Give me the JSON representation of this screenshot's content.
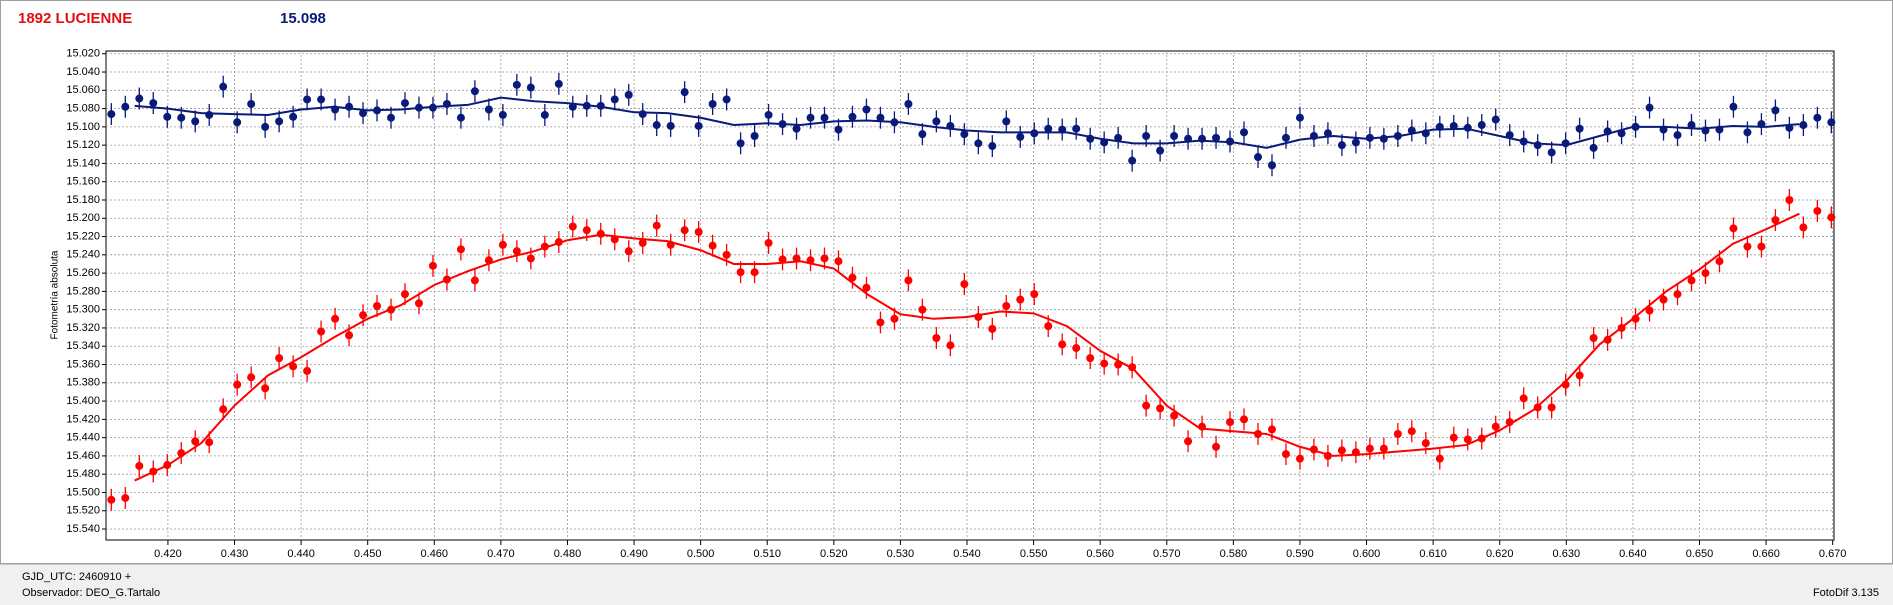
{
  "chart_data": {
    "type": "errorbar_scatter",
    "title": "1892 LUCIENNE",
    "subtitle": "15.098",
    "ylabel": "Fotometría absoluta",
    "y_inverted": true,
    "grid": true,
    "xlim": [
      0.4107,
      0.6702
    ],
    "ylim": [
      15.017,
      15.552
    ],
    "xticks": [
      {
        "value": 0.42,
        "label": "0.420"
      },
      {
        "value": 0.43,
        "label": "0.430"
      },
      {
        "value": 0.44,
        "label": "0.440"
      },
      {
        "value": 0.45,
        "label": "0.450"
      },
      {
        "value": 0.46,
        "label": "0.460"
      },
      {
        "value": 0.47,
        "label": "0.470"
      },
      {
        "value": 0.48,
        "label": "0.480"
      },
      {
        "value": 0.49,
        "label": "0.490"
      },
      {
        "value": 0.5,
        "label": "0.500"
      },
      {
        "value": 0.51,
        "label": "0.510"
      },
      {
        "value": 0.52,
        "label": "0.520"
      },
      {
        "value": 0.53,
        "label": "0.530"
      },
      {
        "value": 0.54,
        "label": "0.540"
      },
      {
        "value": 0.55,
        "label": "0.550"
      },
      {
        "value": 0.56,
        "label": "0.560"
      },
      {
        "value": 0.57,
        "label": "0.570"
      },
      {
        "value": 0.58,
        "label": "0.580"
      },
      {
        "value": 0.59,
        "label": "0.590"
      },
      {
        "value": 0.6,
        "label": "0.600"
      },
      {
        "value": 0.61,
        "label": "0.610"
      },
      {
        "value": 0.62,
        "label": "0.620"
      },
      {
        "value": 0.63,
        "label": "0.630"
      },
      {
        "value": 0.64,
        "label": "0.640"
      },
      {
        "value": 0.65,
        "label": "0.650"
      },
      {
        "value": 0.66,
        "label": "0.660"
      },
      {
        "value": 0.67,
        "label": "0.670"
      }
    ],
    "yticks": [
      {
        "value": 15.02,
        "label": "15.020"
      },
      {
        "value": 15.04,
        "label": "15.040"
      },
      {
        "value": 15.06,
        "label": "15.060"
      },
      {
        "value": 15.08,
        "label": "15.080"
      },
      {
        "value": 15.1,
        "label": "15.100"
      },
      {
        "value": 15.12,
        "label": "15.120"
      },
      {
        "value": 15.14,
        "label": "15.140"
      },
      {
        "value": 15.16,
        "label": "15.160"
      },
      {
        "value": 15.18,
        "label": "15.180"
      },
      {
        "value": 15.2,
        "label": "15.200"
      },
      {
        "value": 15.22,
        "label": "15.220"
      },
      {
        "value": 15.24,
        "label": "15.240"
      },
      {
        "value": 15.26,
        "label": "15.260"
      },
      {
        "value": 15.28,
        "label": "15.280"
      },
      {
        "value": 15.3,
        "label": "15.300"
      },
      {
        "value": 15.32,
        "label": "15.320"
      },
      {
        "value": 15.34,
        "label": "15.340"
      },
      {
        "value": 15.36,
        "label": "15.360"
      },
      {
        "value": 15.38,
        "label": "15.380"
      },
      {
        "value": 15.4,
        "label": "15.400"
      },
      {
        "value": 15.42,
        "label": "15.420"
      },
      {
        "value": 15.44,
        "label": "15.440"
      },
      {
        "value": 15.46,
        "label": "15.460"
      },
      {
        "value": 15.48,
        "label": "15.480"
      },
      {
        "value": 15.5,
        "label": "15.500"
      },
      {
        "value": 15.52,
        "label": "15.520"
      },
      {
        "value": 15.54,
        "label": "15.540"
      }
    ],
    "x": [
      0.4115,
      0.4136,
      0.4157,
      0.4178,
      0.4199,
      0.422,
      0.4241,
      0.4262,
      0.4283,
      0.4304,
      0.4325,
      0.4346,
      0.4367,
      0.4388,
      0.4409,
      0.443,
      0.4451,
      0.4472,
      0.4493,
      0.4514,
      0.4535,
      0.4556,
      0.4577,
      0.4598,
      0.4619,
      0.464,
      0.4661,
      0.4682,
      0.4703,
      0.4724,
      0.4745,
      0.4766,
      0.4787,
      0.4808,
      0.4829,
      0.485,
      0.4871,
      0.4892,
      0.4913,
      0.4934,
      0.4955,
      0.4976,
      0.4997,
      0.5018,
      0.5039,
      0.506,
      0.5081,
      0.5102,
      0.5123,
      0.5144,
      0.5165,
      0.5186,
      0.5207,
      0.5228,
      0.5249,
      0.527,
      0.5291,
      0.5312,
      0.5333,
      0.5354,
      0.5375,
      0.5396,
      0.5417,
      0.5438,
      0.5459,
      0.548,
      0.5501,
      0.5522,
      0.5543,
      0.5564,
      0.5585,
      0.5606,
      0.5627,
      0.5648,
      0.5669,
      0.569,
      0.5711,
      0.5732,
      0.5753,
      0.5774,
      0.5795,
      0.5816,
      0.5837,
      0.5858,
      0.5879,
      0.59,
      0.5921,
      0.5942,
      0.5963,
      0.5984,
      0.6005,
      0.6026,
      0.6047,
      0.6068,
      0.6089,
      0.611,
      0.6131,
      0.6152,
      0.6173,
      0.6194,
      0.6215,
      0.6236,
      0.6257,
      0.6278,
      0.6299,
      0.632,
      0.6341,
      0.6362,
      0.6383,
      0.6404,
      0.6425,
      0.6446,
      0.6467,
      0.6488,
      0.6509,
      0.653,
      0.6551,
      0.6572,
      0.6593,
      0.6614,
      0.6635,
      0.6656,
      0.6677,
      0.6698
    ],
    "series": [
      {
        "color": "#ff0000",
        "yerr": 0.012,
        "values": [
          15.508,
          15.506,
          15.471,
          15.477,
          15.47,
          15.457,
          15.444,
          15.445,
          15.409,
          15.382,
          15.374,
          15.386,
          15.353,
          15.362,
          15.367,
          15.324,
          15.31,
          15.328,
          15.306,
          15.296,
          15.3,
          15.283,
          15.293,
          15.252,
          15.267,
          15.234,
          15.268,
          15.246,
          15.229,
          15.236,
          15.244,
          15.231,
          15.226,
          15.209,
          15.213,
          15.217,
          15.223,
          15.236,
          15.227,
          15.208,
          15.229,
          15.213,
          15.215,
          15.23,
          15.24,
          15.259,
          15.259,
          15.227,
          15.245,
          15.244,
          15.246,
          15.244,
          15.247,
          15.265,
          15.276,
          15.314,
          15.31,
          15.268,
          15.3,
          15.331,
          15.339,
          15.272,
          15.308,
          15.321,
          15.296,
          15.289,
          15.283,
          15.318,
          15.338,
          15.342,
          15.353,
          15.359,
          15.36,
          15.363,
          15.405,
          15.408,
          15.416,
          15.444,
          15.428,
          15.45,
          15.423,
          15.42,
          15.436,
          15.431,
          15.458,
          15.463,
          15.453,
          15.46,
          15.454,
          15.456,
          15.452,
          15.452,
          15.436,
          15.433,
          15.446,
          15.463,
          15.44,
          15.442,
          15.441,
          15.428,
          15.423,
          15.397,
          15.407,
          15.407,
          15.382,
          15.372,
          15.331,
          15.333,
          15.32,
          15.31,
          15.301,
          15.289,
          15.283,
          15.268,
          15.26,
          15.247,
          15.211,
          15.231,
          15.231,
          15.202,
          15.18,
          15.21,
          15.192,
          15.199
        ]
      },
      {
        "color": "#0a1a7a",
        "yerr": 0.012,
        "values": [
          15.086,
          15.078,
          15.069,
          15.074,
          15.089,
          15.09,
          15.094,
          15.087,
          15.056,
          15.095,
          15.075,
          15.1,
          15.094,
          15.089,
          15.07,
          15.07,
          15.081,
          15.078,
          15.085,
          15.082,
          15.09,
          15.074,
          15.079,
          15.079,
          15.075,
          15.09,
          15.061,
          15.081,
          15.087,
          15.054,
          15.057,
          15.087,
          15.053,
          15.078,
          15.077,
          15.077,
          15.07,
          15.065,
          15.086,
          15.098,
          15.099,
          15.062,
          15.099,
          15.075,
          15.07,
          15.118,
          15.11,
          15.087,
          15.097,
          15.102,
          15.09,
          15.09,
          15.103,
          15.089,
          15.081,
          15.09,
          15.095,
          15.075,
          15.108,
          15.094,
          15.099,
          15.108,
          15.118,
          15.121,
          15.094,
          15.111,
          15.107,
          15.102,
          15.103,
          15.102,
          15.113,
          15.117,
          15.112,
          15.137,
          15.11,
          15.126,
          15.11,
          15.113,
          15.113,
          15.112,
          15.116,
          15.106,
          15.133,
          15.142,
          15.112,
          15.09,
          15.11,
          15.107,
          15.12,
          15.117,
          15.112,
          15.113,
          15.11,
          15.104,
          15.107,
          15.1,
          15.099,
          15.101,
          15.098,
          15.092,
          15.109,
          15.116,
          15.12,
          15.128,
          15.118,
          15.102,
          15.123,
          15.105,
          15.107,
          15.1,
          15.079,
          15.103,
          15.109,
          15.098,
          15.104,
          15.103,
          15.078,
          15.106,
          15.097,
          15.082,
          15.101,
          15.098,
          15.09,
          15.095
        ]
      }
    ],
    "fit_x": [
      0.415,
      0.42,
      0.425,
      0.43,
      0.435,
      0.44,
      0.445,
      0.45,
      0.455,
      0.46,
      0.465,
      0.47,
      0.475,
      0.48,
      0.485,
      0.49,
      0.495,
      0.5,
      0.505,
      0.51,
      0.515,
      0.52,
      0.525,
      0.53,
      0.535,
      0.54,
      0.545,
      0.55,
      0.555,
      0.56,
      0.565,
      0.57,
      0.575,
      0.58,
      0.585,
      0.59,
      0.595,
      0.6,
      0.605,
      0.61,
      0.615,
      0.62,
      0.625,
      0.63,
      0.635,
      0.64,
      0.645,
      0.65,
      0.655,
      0.66,
      0.665
    ],
    "fits": [
      {
        "color": "#ff0000",
        "values": [
          15.487,
          15.47,
          15.446,
          15.405,
          15.372,
          15.352,
          15.33,
          15.31,
          15.295,
          15.273,
          15.258,
          15.245,
          15.236,
          15.224,
          15.218,
          15.222,
          15.225,
          15.235,
          15.25,
          15.25,
          15.247,
          15.255,
          15.283,
          15.305,
          15.31,
          15.308,
          15.302,
          15.304,
          15.318,
          15.345,
          15.365,
          15.405,
          15.43,
          15.433,
          15.436,
          15.45,
          15.46,
          15.458,
          15.455,
          15.452,
          15.448,
          15.432,
          15.41,
          15.378,
          15.338,
          15.31,
          15.28,
          15.256,
          15.228,
          15.212,
          15.195
        ]
      },
      {
        "color": "#0a1a7a",
        "values": [
          15.077,
          15.08,
          15.085,
          15.086,
          15.087,
          15.081,
          15.078,
          15.082,
          15.081,
          15.078,
          15.076,
          15.068,
          15.072,
          15.074,
          15.078,
          15.084,
          15.085,
          15.09,
          15.098,
          15.096,
          15.098,
          15.094,
          15.093,
          15.095,
          15.1,
          15.104,
          15.106,
          15.106,
          15.106,
          15.113,
          15.118,
          15.118,
          15.115,
          15.117,
          15.123,
          15.114,
          15.11,
          15.113,
          15.11,
          15.103,
          15.102,
          15.11,
          15.118,
          15.12,
          15.11,
          15.1,
          15.1,
          15.102,
          15.099,
          15.1,
          15.097
        ]
      }
    ],
    "footer": {
      "gjd": "GJD_UTC: 2460910 +",
      "observer": "Observador: DEO_G.Tartalo",
      "software": "FotoDif 3.135"
    }
  }
}
